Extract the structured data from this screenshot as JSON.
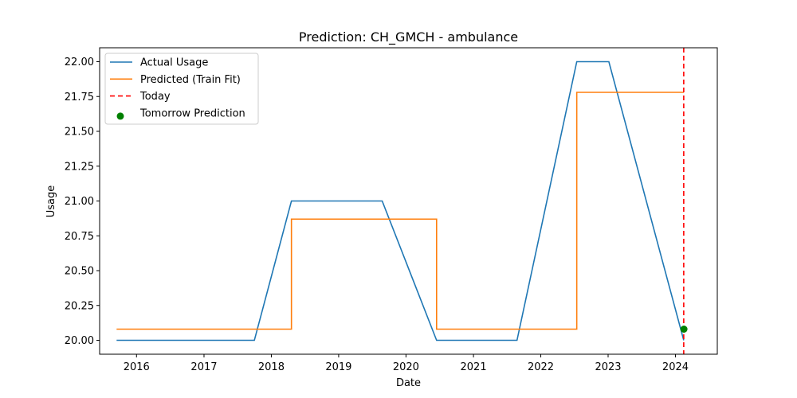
{
  "chart_data": {
    "type": "line",
    "title": "Prediction: CH_GMCH - ambulance",
    "xlabel": "Date",
    "ylabel": "Usage",
    "xlim": [
      "2015-06-15",
      "2024-08-15"
    ],
    "ylim": [
      19.9,
      22.1
    ],
    "x_ticks": [
      "2016",
      "2017",
      "2018",
      "2019",
      "2020",
      "2021",
      "2022",
      "2023",
      "2024"
    ],
    "y_ticks": [
      "20.00",
      "20.25",
      "20.50",
      "20.75",
      "21.00",
      "21.25",
      "21.50",
      "21.75",
      "22.00"
    ],
    "grid": false,
    "legend_position": "upper-left",
    "series": [
      {
        "name": "Actual Usage",
        "style": "line",
        "color": "#1f77b4",
        "points": [
          [
            "2015-09-15",
            20.0
          ],
          [
            "2017-10-01",
            20.0
          ],
          [
            "2018-04-20",
            21.0
          ],
          [
            "2019-08-25",
            21.0
          ],
          [
            "2020-06-15",
            20.0
          ],
          [
            "2021-08-25",
            20.0
          ],
          [
            "2022-07-15",
            22.0
          ],
          [
            "2023-01-05",
            22.0
          ],
          [
            "2024-02-15",
            20.0
          ]
        ]
      },
      {
        "name": "Predicted (Train Fit)",
        "style": "step",
        "color": "#ff7f0e",
        "points": [
          [
            "2015-09-15",
            20.08
          ],
          [
            "2018-04-20",
            20.08
          ],
          [
            "2018-04-20",
            20.87
          ],
          [
            "2020-06-15",
            20.87
          ],
          [
            "2020-06-15",
            20.08
          ],
          [
            "2022-07-15",
            20.08
          ],
          [
            "2022-07-15",
            21.78
          ],
          [
            "2024-02-15",
            21.78
          ]
        ]
      },
      {
        "name": "Today",
        "style": "vline-dashed",
        "color": "#ff0000",
        "x": "2024-02-15"
      },
      {
        "name": "Tomorrow Prediction",
        "style": "scatter",
        "color": "#008000",
        "points": [
          [
            "2024-02-16",
            20.08
          ]
        ]
      }
    ]
  }
}
